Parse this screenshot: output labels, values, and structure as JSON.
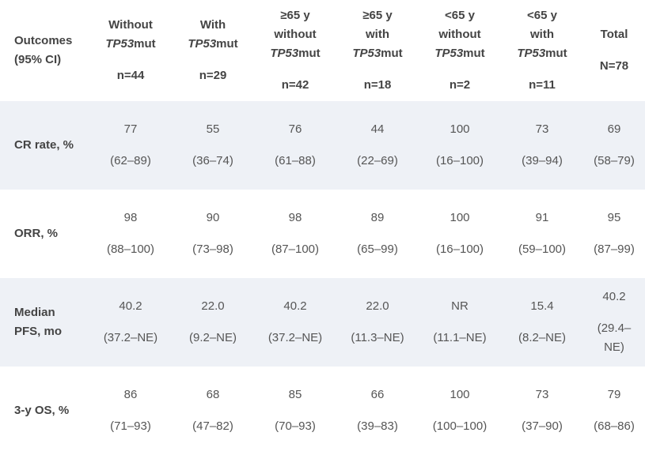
{
  "header": {
    "outcomes_line1": "Outcomes",
    "outcomes_line2": "(95% CI)",
    "columns": [
      {
        "pre": "Without",
        "gene": "TP53",
        "post": "mut",
        "n": "n=44"
      },
      {
        "pre": "With",
        "gene": "TP53",
        "post": "mut",
        "n": "n=29"
      },
      {
        "pre_a": "≥65 y",
        "pre_b": "without",
        "gene": "TP53",
        "post": "mut",
        "n": "n=42"
      },
      {
        "pre_a": "≥65 y",
        "pre_b": "with",
        "gene": "TP53",
        "post": "mut",
        "n": "n=18"
      },
      {
        "pre_a": "<65 y",
        "pre_b": "without",
        "gene": "TP53",
        "post": "mut",
        "n": "n=2"
      },
      {
        "pre_a": "<65 y",
        "pre_b": "with",
        "gene": "TP53",
        "post": "mut",
        "n": "n=11"
      },
      {
        "pre": "Total",
        "n": "N=78"
      }
    ]
  },
  "rows": [
    {
      "label": "CR rate, %",
      "cells": [
        {
          "value": "77",
          "ci": "(62–89)"
        },
        {
          "value": "55",
          "ci": "(36–74)"
        },
        {
          "value": "76",
          "ci": "(61–88)"
        },
        {
          "value": "44",
          "ci": "(22–69)"
        },
        {
          "value": "100",
          "ci": "(16–100)"
        },
        {
          "value": "73",
          "ci": "(39–94)"
        },
        {
          "value": "69",
          "ci": "(58–79)"
        }
      ]
    },
    {
      "label": "ORR, %",
      "cells": [
        {
          "value": "98",
          "ci": "(88–100)"
        },
        {
          "value": "90",
          "ci": "(73–98)"
        },
        {
          "value": "98",
          "ci": "(87–100)"
        },
        {
          "value": "89",
          "ci": "(65–99)"
        },
        {
          "value": "100",
          "ci": "(16–100)"
        },
        {
          "value": "91",
          "ci": "(59–100)"
        },
        {
          "value": "95",
          "ci": "(87–99)"
        }
      ]
    },
    {
      "label": "Median PFS, mo",
      "cells": [
        {
          "value": "40.2",
          "ci": "(37.2–NE)"
        },
        {
          "value": "22.0",
          "ci": "(9.2–NE)"
        },
        {
          "value": "40.2",
          "ci": "(37.2–NE)"
        },
        {
          "value": "22.0",
          "ci": "(11.3–NE)"
        },
        {
          "value": "NR",
          "ci": "(11.1–NE)"
        },
        {
          "value": "15.4",
          "ci": "(8.2–NE)"
        },
        {
          "value": "40.2",
          "ci": "(29.4–NE)"
        }
      ]
    },
    {
      "label": "3-y OS, %",
      "cells": [
        {
          "value": "86",
          "ci": "(71–93)"
        },
        {
          "value": "68",
          "ci": "(47–82)"
        },
        {
          "value": "85",
          "ci": "(70–93)"
        },
        {
          "value": "66",
          "ci": "(39–83)"
        },
        {
          "value": "100",
          "ci": "(100–100)"
        },
        {
          "value": "73",
          "ci": "(37–90)"
        },
        {
          "value": "79",
          "ci": "(68–86)"
        }
      ]
    }
  ]
}
